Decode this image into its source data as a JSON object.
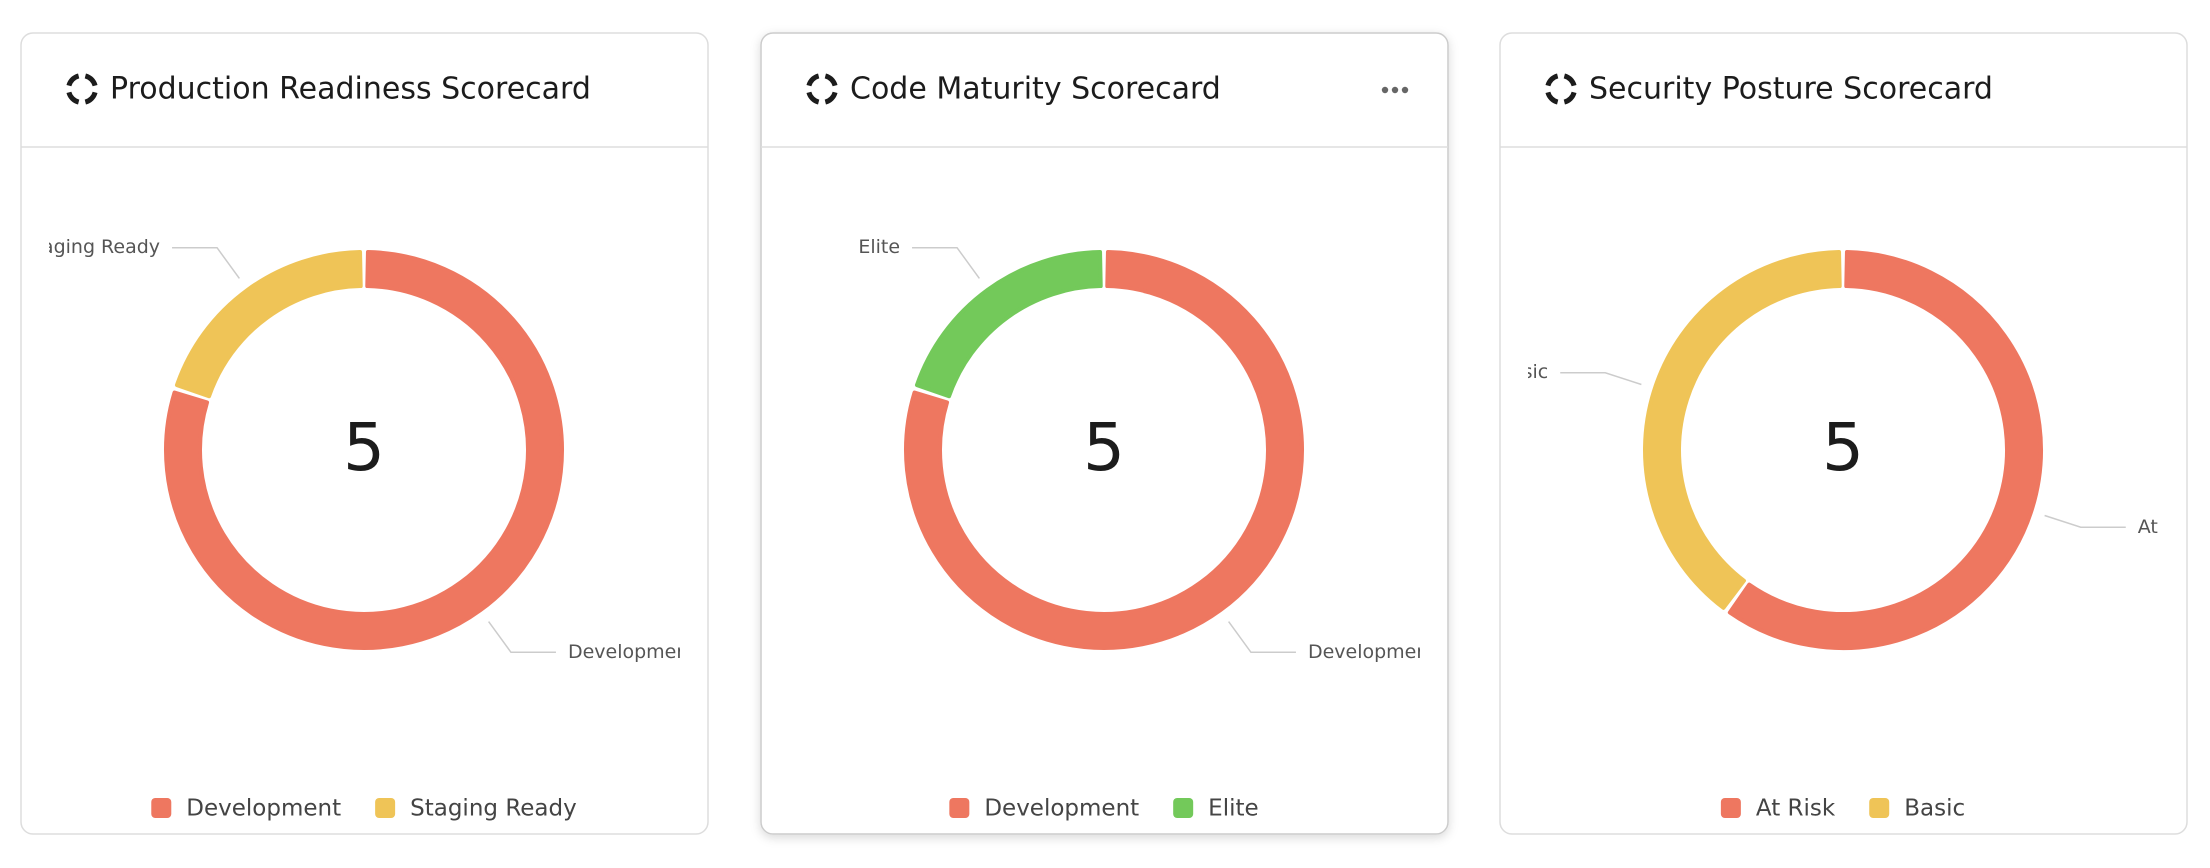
{
  "chart_data": [
    {
      "type": "donut",
      "title": "Production Readiness Scorecard",
      "total": 5,
      "categories": [
        "Development",
        "Staging Ready"
      ],
      "values": [
        4,
        1
      ],
      "colors": [
        "#ee7760",
        "#efc457"
      ],
      "legend": "bottom"
    },
    {
      "type": "donut",
      "title": "Code Maturity Scorecard",
      "total": 5,
      "categories": [
        "Development",
        "Elite"
      ],
      "values": [
        4,
        1
      ],
      "colors": [
        "#ee7760",
        "#73c95a"
      ],
      "legend": "bottom"
    },
    {
      "type": "donut",
      "title": "Security Posture Scorecard",
      "total": 5,
      "categories": [
        "At Risk",
        "Basic"
      ],
      "values": [
        3,
        2
      ],
      "colors": [
        "#ee7760",
        "#efc457"
      ],
      "legend": "bottom"
    }
  ]
}
